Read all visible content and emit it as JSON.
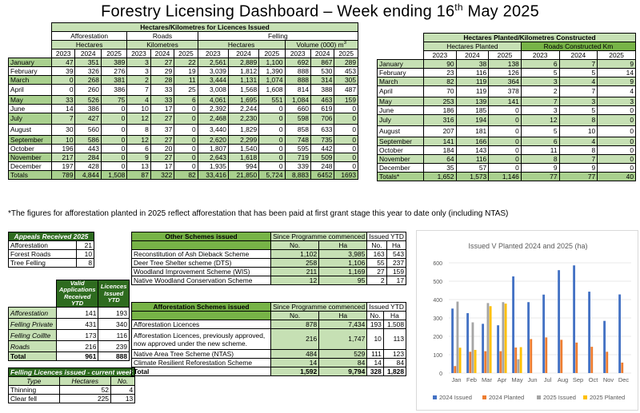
{
  "title": "Forestry Licensing Dashboard – Week ending 16",
  "title_sup": "th",
  "title_tail": " May 2025",
  "main": {
    "group_header": "Hectares/Kilometres for Licences Issued",
    "sections": [
      "Afforestation",
      "Roads",
      "Felling"
    ],
    "units": [
      "Hectares",
      "Kilometres",
      "Hectares",
      "Volume (000) m"
    ],
    "unit_sup": "3",
    "years": [
      "2023",
      "2024",
      "2025"
    ],
    "rows": [
      {
        "month": "January",
        "v": [
          "47",
          "351",
          "389",
          "3",
          "27",
          "22",
          "2,561",
          "2,889",
          "1,100",
          "692",
          "867",
          "289"
        ]
      },
      {
        "month": "February",
        "v": [
          "39",
          "326",
          "276",
          "3",
          "29",
          "19",
          "3,039",
          "1,812",
          "1,390",
          "888",
          "530",
          "453"
        ]
      },
      {
        "month": "March",
        "v": [
          "0",
          "268",
          "381",
          "2",
          "28",
          "11",
          "3,444",
          "1,131",
          "1,074",
          "888",
          "314",
          "305"
        ]
      },
      {
        "month": "April",
        "v": [
          "0",
          "260",
          "386",
          "7",
          "33",
          "25",
          "3,008",
          "1,568",
          "1,608",
          "814",
          "388",
          "487"
        ]
      },
      {
        "month": "May",
        "v": [
          "33",
          "526",
          "75",
          "4",
          "33",
          "6",
          "4,061",
          "1,695",
          "551",
          "1,084",
          "463",
          "159"
        ]
      },
      {
        "month": "June",
        "v": [
          "14",
          "386",
          "0",
          "10",
          "17",
          "0",
          "2,392",
          "2,244",
          "0",
          "660",
          "619",
          "0"
        ]
      },
      {
        "month": "July",
        "v": [
          "7",
          "427",
          "0",
          "12",
          "27",
          "0",
          "2,468",
          "2,230",
          "0",
          "598",
          "706",
          "0"
        ]
      },
      {
        "month": "August",
        "v": [
          "30",
          "560",
          "0",
          "8",
          "37",
          "0",
          "3,440",
          "1,829",
          "0",
          "858",
          "633",
          "0"
        ]
      },
      {
        "month": "September",
        "v": [
          "10",
          "586",
          "0",
          "12",
          "27",
          "0",
          "2,620",
          "2,299",
          "0",
          "748",
          "735",
          "0"
        ]
      },
      {
        "month": "October",
        "v": [
          "196",
          "443",
          "0",
          "6",
          "20",
          "0",
          "1,807",
          "1,540",
          "0",
          "595",
          "442",
          "0"
        ]
      },
      {
        "month": "November",
        "v": [
          "217",
          "284",
          "0",
          "9",
          "27",
          "0",
          "2,643",
          "1,618",
          "0",
          "719",
          "509",
          "0"
        ]
      },
      {
        "month": "December",
        "v": [
          "197",
          "428",
          "0",
          "13",
          "17",
          "0",
          "1,935",
          "994",
          "0",
          "339",
          "248",
          "0"
        ]
      }
    ],
    "totals_label": "Totals",
    "totals": [
      "789",
      "4,844",
      "1,508",
      "87",
      "322",
      "82",
      "33,416",
      "21,850",
      "5,724",
      "8,883",
      "6452",
      "1693"
    ]
  },
  "planted": {
    "header": "Hectares Planted/Kilometres Constructed",
    "sub1": "Hectares Planted",
    "sub2": "Roads Constructed Km",
    "years": [
      "2023",
      "2024",
      "2025"
    ],
    "rows": [
      {
        "month": "January",
        "v": [
          "90",
          "38",
          "138",
          "6",
          "7",
          "9"
        ]
      },
      {
        "month": "February",
        "v": [
          "23",
          "116",
          "126",
          "5",
          "5",
          "14"
        ]
      },
      {
        "month": "March",
        "v": [
          "82",
          "119",
          "364",
          "3",
          "4",
          "9"
        ]
      },
      {
        "month": "April",
        "v": [
          "70",
          "119",
          "378",
          "2",
          "7",
          "4"
        ]
      },
      {
        "month": "May",
        "v": [
          "253",
          "139",
          "141",
          "7",
          "3",
          "3"
        ]
      },
      {
        "month": "June",
        "v": [
          "186",
          "185",
          "0",
          "3",
          "5",
          "0"
        ]
      },
      {
        "month": "July",
        "v": [
          "316",
          "194",
          "0",
          "12",
          "8",
          "0"
        ]
      },
      {
        "month": "August",
        "v": [
          "207",
          "181",
          "0",
          "5",
          "10",
          "0"
        ]
      },
      {
        "month": "September",
        "v": [
          "141",
          "166",
          "0",
          "6",
          "4",
          "0"
        ]
      },
      {
        "month": "October",
        "v": [
          "184",
          "143",
          "0",
          "11",
          "8",
          "0"
        ]
      },
      {
        "month": "November",
        "v": [
          "64",
          "116",
          "0",
          "8",
          "7",
          "0"
        ]
      },
      {
        "month": "December",
        "v": [
          "35",
          "57",
          "0",
          "9",
          "9",
          "0"
        ]
      }
    ],
    "totals_label": "Totals*",
    "totals": [
      "1,652",
      "1,573",
      "1,146",
      "77",
      "77",
      "40"
    ]
  },
  "footnote": "*The figures for afforestation planted in 2025 reflect afforestation that has been paid at first grant stage this year to date only (including NTAS)",
  "appeals": {
    "header": "Appeals Received 2025",
    "rows": [
      [
        "Afforestation",
        "21"
      ],
      [
        "Forest Roads",
        "10"
      ],
      [
        "Tree Felling",
        "8"
      ]
    ]
  },
  "valid": {
    "col1": "Valid Applications Received YTD",
    "col2": "Licences Issued YTD",
    "rows": [
      [
        "Afforestation",
        "141",
        "193"
      ],
      [
        "Felling Private",
        "431",
        "340"
      ],
      [
        "Felling Coillte",
        "173",
        "116"
      ],
      [
        "Roads",
        "216",
        "239"
      ]
    ],
    "total": [
      "Total",
      "961",
      "888"
    ]
  },
  "felling_week": {
    "header": "Felling Licences issued - current week",
    "cols": [
      "Type",
      "Hectares",
      "No."
    ],
    "rows": [
      [
        "Thinning",
        "52",
        "4"
      ],
      [
        "Clear fell",
        "225",
        "13"
      ]
    ]
  },
  "other_schemes": {
    "header": "Other Schemes issued",
    "since": "Since Programme commenced",
    "ytd": "Issued YTD",
    "sub": [
      "No.",
      "Ha",
      "No.",
      "Ha"
    ],
    "rows": [
      [
        "Reconstitution of Ash Dieback Scheme",
        "1,102",
        "3,985",
        "163",
        "543"
      ],
      [
        "Deer Tree Shelter scheme (DTS)",
        "258",
        "1,106",
        "55",
        "237"
      ],
      [
        "Woodland Improvement Scheme (WIS)",
        "211",
        "1,169",
        "27",
        "159"
      ],
      [
        "Native Woodland Conservation Scheme",
        "12",
        "95",
        "2",
        "17"
      ]
    ]
  },
  "aff_schemes": {
    "header": "Afforestation Schemes issued",
    "since": "Since Programme commenced",
    "ytd": "Issued YTD",
    "sub": [
      "No.",
      "Ha",
      "No.",
      "Ha"
    ],
    "rows": [
      [
        "Afforestation Licences",
        "878",
        "7,434",
        "193",
        "1,508"
      ],
      [
        "Afforestation Licences, previously approved, now approved under the new scheme.",
        "216",
        "1,747",
        "10",
        "113"
      ],
      [
        "Native Area Tree Scheme (NTAS)",
        "484",
        "529",
        "111",
        "123"
      ],
      [
        "Climate Resilient Reforestation Scheme",
        "14",
        "84",
        "14",
        "84"
      ]
    ],
    "total": [
      "Total",
      "1,592",
      "9,794",
      "328",
      "1,828"
    ]
  },
  "chart_data": {
    "type": "bar",
    "title": "Issued V Planted 2024 and 2025 (ha)",
    "categories": [
      "Jan",
      "Feb",
      "Mar",
      "Apr",
      "May",
      "Jun",
      "Jul",
      "Aug",
      "Sep",
      "Oct",
      "Nov",
      "Dec"
    ],
    "ylim": [
      0,
      600
    ],
    "yticks": [
      "0",
      "100",
      "200",
      "300",
      "400",
      "500",
      "600"
    ],
    "series": [
      {
        "name": "2024 Issued",
        "color": "#4472c4",
        "values": [
          351,
          326,
          268,
          260,
          526,
          386,
          427,
          560,
          586,
          443,
          284,
          428
        ]
      },
      {
        "name": "2024 Planted",
        "color": "#ed7d31",
        "values": [
          38,
          116,
          119,
          119,
          139,
          185,
          194,
          181,
          166,
          143,
          116,
          57
        ]
      },
      {
        "name": "2025 Issued",
        "color": "#a5a5a5",
        "values": [
          389,
          276,
          381,
          386,
          75,
          0,
          0,
          0,
          0,
          0,
          0,
          0
        ]
      },
      {
        "name": "2025 Planted",
        "color": "#ffc000",
        "values": [
          138,
          126,
          364,
          378,
          141,
          0,
          0,
          0,
          0,
          0,
          0,
          0
        ]
      }
    ],
    "legend": "bottom",
    "grid": true
  }
}
